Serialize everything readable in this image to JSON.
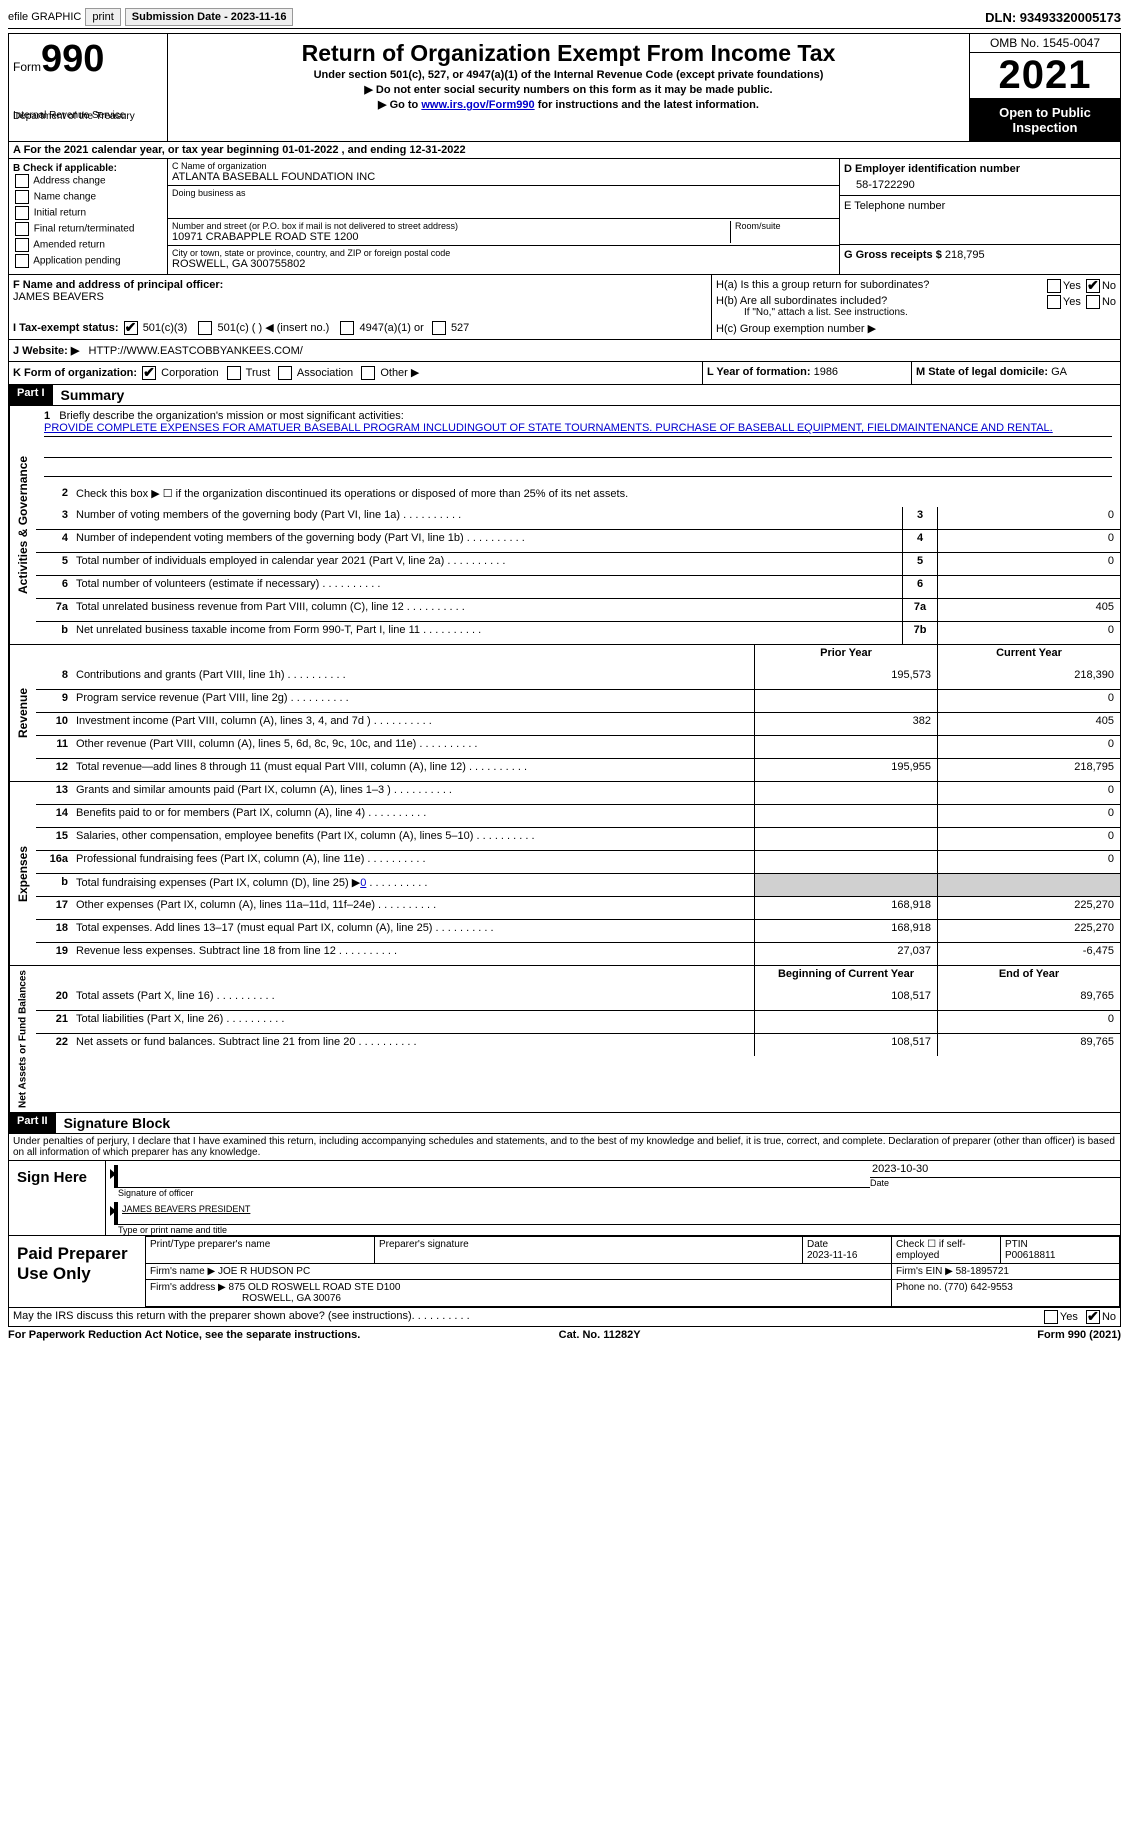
{
  "top": {
    "efile": "efile GRAPHIC",
    "print": "print",
    "submission": "Submission Date - 2023-11-16",
    "dln": "DLN: 93493320005173"
  },
  "header": {
    "form_label": "Form",
    "form_num": "990",
    "title": "Return of Organization Exempt From Income Tax",
    "under": "Under section 501(c), 527, or 4947(a)(1) of the Internal Revenue Code (except private foundations)",
    "line1": "▶ Do not enter social security numbers on this form as it may be made public.",
    "line2_pre": "▶ Go to ",
    "line2_link": "www.irs.gov/Form990",
    "line2_post": " for instructions and the latest information.",
    "dept": "Department of the Treasury",
    "irs": "Internal Revenue Service",
    "omb": "OMB No. 1545-0047",
    "year": "2021",
    "inspect": "Open to Public Inspection"
  },
  "a_line": "A For the 2021 calendar year, or tax year beginning 01-01-2022    , and ending 12-31-2022",
  "b": {
    "label": "B Check if applicable:",
    "addr": "Address change",
    "name": "Name change",
    "init": "Initial return",
    "final": "Final return/terminated",
    "amend": "Amended return",
    "app": "Application pending"
  },
  "c": {
    "name_label": "C Name of organization",
    "name": "ATLANTA BASEBALL FOUNDATION INC",
    "dba_label": "Doing business as",
    "dba": "",
    "street_label": "Number and street (or P.O. box if mail is not delivered to street address)",
    "room_label": "Room/suite",
    "street": "10971 CRABAPPLE ROAD STE 1200",
    "city_label": "City or town, state or province, country, and ZIP or foreign postal code",
    "city": "ROSWELL, GA  300755802"
  },
  "d": {
    "label": "D Employer identification number",
    "value": "58-1722290"
  },
  "e": {
    "label": "E Telephone number",
    "value": ""
  },
  "g": {
    "label": "G Gross receipts $",
    "value": "218,795"
  },
  "f": {
    "label": "F Name and address of principal officer:",
    "value": "JAMES BEAVERS"
  },
  "h": {
    "a": "H(a)  Is this a group return for subordinates?",
    "b": "H(b)  Are all subordinates included?",
    "note": "If \"No,\" attach a list. See instructions.",
    "c": "H(c)  Group exemption number ▶"
  },
  "i": {
    "label": "I   Tax-exempt status:",
    "o1": "501(c)(3)",
    "o2": "501(c) (  ) ◀ (insert no.)",
    "o3": "4947(a)(1) or",
    "o4": "527"
  },
  "j": {
    "label": "J   Website: ▶",
    "value": "HTTP://WWW.EASTCOBBYANKEES.COM/"
  },
  "k": {
    "label": "K Form of organization:",
    "corp": "Corporation",
    "trust": "Trust",
    "assoc": "Association",
    "other": "Other ▶"
  },
  "l": {
    "label": "L Year of formation:",
    "value": "1986"
  },
  "m": {
    "label": "M State of legal domicile:",
    "value": "GA"
  },
  "part1": {
    "header": "Part I",
    "title": "Summary",
    "line1_label": "Briefly describe the organization's mission or most significant activities:",
    "mission": "PROVIDE COMPLETE EXPENSES FOR AMATUER BASEBALL PROGRAM INCLUDINGOUT OF STATE TOURNAMENTS. PURCHASE OF BASEBALL EQUIPMENT, FIELDMAINTENANCE AND RENTAL.",
    "line2": "Check this box ▶ ☐ if the organization discontinued its operations or disposed of more than 25% of its net assets."
  },
  "sections": {
    "gov_label": "Activities & Governance",
    "rev_label": "Revenue",
    "exp_label": "Expenses",
    "net_label": "Net Assets or Fund Balances"
  },
  "gov_lines": [
    {
      "n": "3",
      "d": "Number of voting members of the governing body (Part VI, line 1a)",
      "box": "3",
      "v": "0"
    },
    {
      "n": "4",
      "d": "Number of independent voting members of the governing body (Part VI, line 1b)",
      "box": "4",
      "v": "0"
    },
    {
      "n": "5",
      "d": "Total number of individuals employed in calendar year 2021 (Part V, line 2a)",
      "box": "5",
      "v": "0"
    },
    {
      "n": "6",
      "d": "Total number of volunteers (estimate if necessary)",
      "box": "6",
      "v": ""
    },
    {
      "n": "7a",
      "d": "Total unrelated business revenue from Part VIII, column (C), line 12",
      "box": "7a",
      "v": "405"
    },
    {
      "n": "b",
      "d": "Net unrelated business taxable income from Form 990-T, Part I, line 11",
      "box": "7b",
      "v": "0"
    }
  ],
  "col_headers": {
    "prior": "Prior Year",
    "current": "Current Year"
  },
  "rev_lines": [
    {
      "n": "8",
      "d": "Contributions and grants (Part VIII, line 1h)",
      "p": "195,573",
      "c": "218,390"
    },
    {
      "n": "9",
      "d": "Program service revenue (Part VIII, line 2g)",
      "p": "",
      "c": "0"
    },
    {
      "n": "10",
      "d": "Investment income (Part VIII, column (A), lines 3, 4, and 7d )",
      "p": "382",
      "c": "405"
    },
    {
      "n": "11",
      "d": "Other revenue (Part VIII, column (A), lines 5, 6d, 8c, 9c, 10c, and 11e)",
      "p": "",
      "c": "0"
    },
    {
      "n": "12",
      "d": "Total revenue—add lines 8 through 11 (must equal Part VIII, column (A), line 12)",
      "p": "195,955",
      "c": "218,795"
    }
  ],
  "exp_lines": [
    {
      "n": "13",
      "d": "Grants and similar amounts paid (Part IX, column (A), lines 1–3 )",
      "p": "",
      "c": "0"
    },
    {
      "n": "14",
      "d": "Benefits paid to or for members (Part IX, column (A), line 4)",
      "p": "",
      "c": "0"
    },
    {
      "n": "15",
      "d": "Salaries, other compensation, employee benefits (Part IX, column (A), lines 5–10)",
      "p": "",
      "c": "0"
    },
    {
      "n": "16a",
      "d": "Professional fundraising fees (Part IX, column (A), line 11e)",
      "p": "",
      "c": "0"
    },
    {
      "n": "b",
      "d": "Total fundraising expenses (Part IX, column (D), line 25) ▶0",
      "p": "shade",
      "c": "shade"
    },
    {
      "n": "17",
      "d": "Other expenses (Part IX, column (A), lines 11a–11d, 11f–24e)",
      "p": "168,918",
      "c": "225,270"
    },
    {
      "n": "18",
      "d": "Total expenses. Add lines 13–17 (must equal Part IX, column (A), line 25)",
      "p": "168,918",
      "c": "225,270"
    },
    {
      "n": "19",
      "d": "Revenue less expenses. Subtract line 18 from line 12",
      "p": "27,037",
      "c": "-6,475"
    }
  ],
  "net_headers": {
    "beg": "Beginning of Current Year",
    "end": "End of Year"
  },
  "net_lines": [
    {
      "n": "20",
      "d": "Total assets (Part X, line 16)",
      "p": "108,517",
      "c": "89,765"
    },
    {
      "n": "21",
      "d": "Total liabilities (Part X, line 26)",
      "p": "",
      "c": "0"
    },
    {
      "n": "22",
      "d": "Net assets or fund balances. Subtract line 21 from line 20",
      "p": "108,517",
      "c": "89,765"
    }
  ],
  "part2": {
    "header": "Part II",
    "title": "Signature Block",
    "decl": "Under penalties of perjury, I declare that I have examined this return, including accompanying schedules and statements, and to the best of my knowledge and belief, it is true, correct, and complete. Declaration of preparer (other than officer) is based on all information of which preparer has any knowledge."
  },
  "sign": {
    "label": "Sign Here",
    "sig_officer": "Signature of officer",
    "date": "Date",
    "date_val": "2023-10-30",
    "name": "JAMES BEAVERS  PRESIDENT",
    "name_label": "Type or print name and title"
  },
  "prep": {
    "label": "Paid Preparer Use Only",
    "h1": "Print/Type preparer's name",
    "h2": "Preparer's signature",
    "h3": "Date",
    "date": "2023-11-16",
    "h4": "Check ☐ if self-employed",
    "h5": "PTIN",
    "ptin": "P00618811",
    "firm_l": "Firm's name    ▶",
    "firm": "JOE R HUDSON PC",
    "ein_l": "Firm's EIN ▶",
    "ein": "58-1895721",
    "addr_l": "Firm's address ▶",
    "addr": "875 OLD ROSWELL ROAD STE D100",
    "addr2": "ROSWELL, GA  30076",
    "phone_l": "Phone no.",
    "phone": "(770) 642-9553"
  },
  "discuss": "May the IRS discuss this return with the preparer shown above? (see instructions)",
  "footer": {
    "left": "For Paperwork Reduction Act Notice, see the separate instructions.",
    "cat": "Cat. No. 11282Y",
    "right": "Form 990 (2021)"
  }
}
